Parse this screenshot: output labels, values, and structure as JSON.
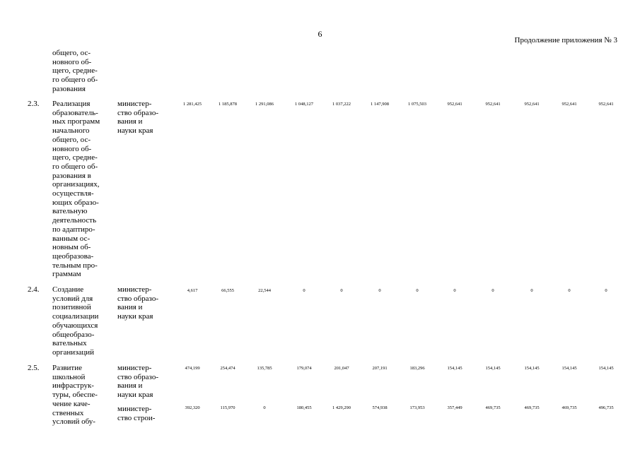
{
  "page_number": "6",
  "appendix_note": "Продолжение приложения № 3",
  "continuation": {
    "name": "общего, ос-\nновного об-\nщего, средне-\nго общего об-\nразования"
  },
  "rows": [
    {
      "num": "2.3.",
      "name": "Реализация\nобразователь-\nных программ\nначального\nобщего, ос-\nновного об-\nщего, средне-\nго общего об-\nразования в\nорганизациях,\nосуществля-\nющих образо-\nвательную\nдеятельность\nпо адаптиро-\nванным ос-\nновным об-\nщеобразова-\nтельным про-\nграммам",
      "lines": [
        {
          "executor": "министер-\nство образо-\nвания и\nнауки края",
          "values": [
            "1 281,425",
            "1 185,878",
            "1 291,086",
            "1 048,127",
            "1 037,222",
            "1 147,908",
            "1 075,503",
            "952,641",
            "952,641",
            "952,641",
            "952,641",
            "952,641"
          ]
        }
      ]
    },
    {
      "num": "2.4.",
      "name": "Создание\nусловий для\nпозитивной\nсоциализации\nобучающихся\nобщеобразо-\nвательных\nорганизаций",
      "lines": [
        {
          "executor": "министер-\nство образо-\nвания и\nнауки края",
          "values": [
            "4,617",
            "66,555",
            "22,544",
            "0",
            "0",
            "0",
            "0",
            "0",
            "0",
            "0",
            "0",
            "0"
          ]
        }
      ]
    },
    {
      "num": "2.5.",
      "name": "Развитие\nшкольной\nинфраструк-\nтуры, обеспе-\nчение каче-\nственных\nусловий обу-",
      "lines": [
        {
          "executor": "министер-\nство образо-\nвания и\nнауки края",
          "values": [
            "474,199",
            "254,474",
            "135,785",
            "179,074",
            "201,047",
            "207,191",
            "183,296",
            "154,145",
            "154,145",
            "154,145",
            "154,145",
            "154,145"
          ]
        },
        {
          "executor": "министер-\nство строи-",
          "values": [
            "392,320",
            "115,970",
            "0",
            "180,455",
            "1 429,290",
            "574,938",
            "173,953",
            "357,449",
            "469,735",
            "469,735",
            "469,735",
            "496,735"
          ]
        }
      ]
    }
  ]
}
